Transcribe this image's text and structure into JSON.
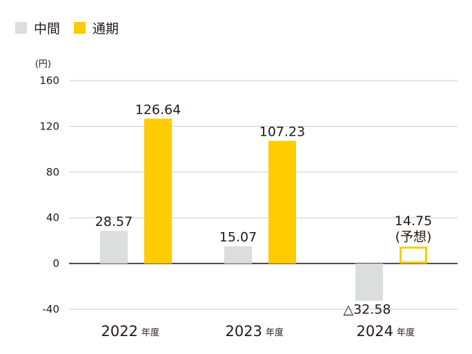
{
  "legend": {
    "items": [
      {
        "label": "中間",
        "color": "#dcdddd",
        "icon": "square-swatch"
      },
      {
        "label": "通期",
        "color": "#fccc00",
        "icon": "square-swatch"
      }
    ]
  },
  "chart_data": {
    "type": "bar",
    "unit_label": "(円)",
    "categories": [
      "2022",
      "2023",
      "2024"
    ],
    "category_suffix": "年度",
    "ylim": [
      -40,
      160
    ],
    "yticks": [
      "160",
      "120",
      "80",
      "40",
      "0",
      "-40"
    ],
    "grid": true,
    "legend_position": "top-left",
    "series": [
      {
        "name": "中間",
        "color": "#dcdddd",
        "values": [
          28.57,
          15.07,
          -32.58
        ],
        "labels": [
          "28.57",
          "15.07",
          "△32.58"
        ]
      },
      {
        "name": "通期",
        "color": "#fccc00",
        "values": [
          126.64,
          107.23,
          14.75
        ],
        "labels": [
          "126.64",
          "107.23",
          "14.75"
        ],
        "forecast": [
          false,
          false,
          true
        ],
        "forecast_note": "(予想)"
      }
    ]
  }
}
